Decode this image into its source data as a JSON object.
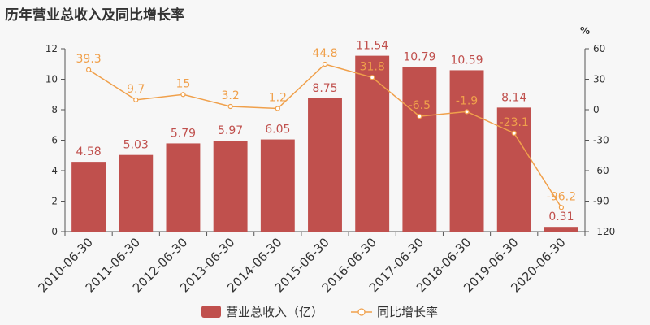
{
  "chart_data": {
    "type": "bar",
    "title": "历年营业总收入及同比增长率",
    "categories": [
      "2010-06-30",
      "2011-06-30",
      "2012-06-30",
      "2013-06-30",
      "2014-06-30",
      "2015-06-30",
      "2016-06-30",
      "2017-06-30",
      "2018-06-30",
      "2019-06-30",
      "2020-06-30"
    ],
    "series": [
      {
        "name": "营业总收入（亿）",
        "type": "bar",
        "axis": "left",
        "values": [
          4.58,
          5.03,
          5.79,
          5.97,
          6.05,
          8.75,
          11.54,
          10.79,
          10.59,
          8.14,
          0.31
        ],
        "labels": [
          "4.58",
          "5.03",
          "5.79",
          "5.97",
          "6.05",
          "8.75",
          "11.54",
          "10.79",
          "10.59",
          "8.14",
          "0.31"
        ]
      },
      {
        "name": "同比增长率",
        "type": "line",
        "axis": "right",
        "values": [
          39.3,
          9.7,
          15,
          3.2,
          1.2,
          44.8,
          31.8,
          -6.5,
          -1.9,
          -23.1,
          -96.2
        ],
        "labels": [
          "39.3",
          "9.7",
          "15",
          "3.2",
          "1.2",
          "44.8",
          "31.8",
          "-6.5",
          "-1.9",
          "-23.1",
          "-96.2"
        ]
      }
    ],
    "y_left": {
      "ylim": [
        0,
        12
      ],
      "ticks": [
        "0",
        "2",
        "4",
        "6",
        "8",
        "10",
        "12"
      ]
    },
    "y_right": {
      "ylim": [
        -120,
        60
      ],
      "ticks": [
        "-120",
        "-90",
        "-60",
        "-30",
        "0",
        "30",
        "60"
      ],
      "unit": "%"
    },
    "colors": {
      "bar": "#c0504d",
      "line": "#f0a04b",
      "axis": "#555555",
      "text": "#333333"
    },
    "legend": {
      "position": "bottom-center"
    },
    "grid": false
  }
}
